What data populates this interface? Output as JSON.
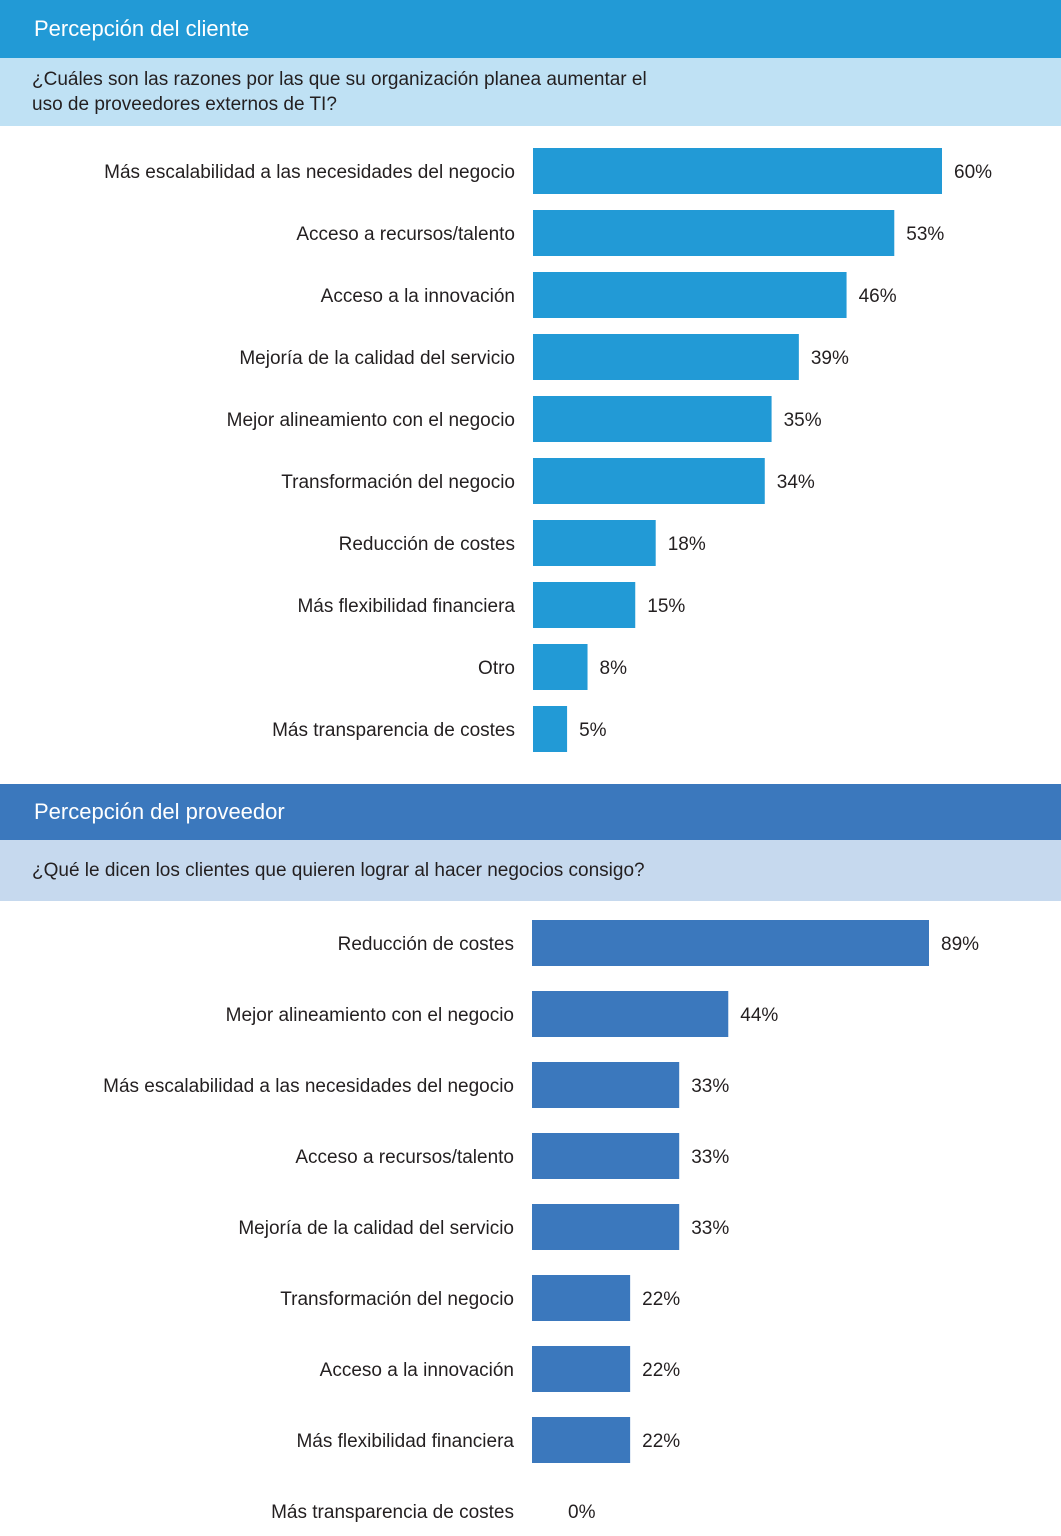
{
  "colors": {
    "client_header": "#229ad6",
    "client_question_bg": "#bfe1f4",
    "client_bar": "#229ad6",
    "provider_header": "#3b78bd",
    "provider_question_bg": "#c6d9ee",
    "provider_bar": "#3b78bd"
  },
  "client": {
    "title": "Percepción del cliente",
    "question": "¿Cuáles son las razones por las que su organización planea aumentar el uso de proveedores externos de TI?"
  },
  "provider": {
    "title": "Percepción del proveedor",
    "question": "¿Qué le dicen los clientes que quieren lograr al hacer negocios consigo?"
  },
  "chart_data": [
    {
      "type": "bar",
      "orientation": "horizontal",
      "categories": [
        "Más escalabilidad a las necesidades del negocio",
        "Acceso a recursos/talento",
        "Acceso a la innovación",
        "Mejoría de la calidad del servicio",
        "Mejor alineamiento con el negocio",
        "Transformación del negocio",
        "Reducción de costes",
        "Más flexibilidad financiera",
        "Otro",
        "Más transparencia de costes"
      ],
      "values": [
        60,
        53,
        46,
        39,
        35,
        34,
        18,
        15,
        8,
        5
      ],
      "value_labels": [
        "60%",
        "53%",
        "46%",
        "39%",
        "35%",
        "34%",
        "18%",
        "15%",
        "8%",
        "5%"
      ],
      "unit": "%",
      "xlim": [
        0,
        60
      ],
      "grid": false
    },
    {
      "type": "bar",
      "orientation": "horizontal",
      "categories": [
        "Reducción de costes",
        "Mejor alineamiento con el negocio",
        "Más escalabilidad a las necesidades del negocio",
        "Acceso a recursos/talento",
        "Mejoría de la calidad del servicio",
        "Transformación del negocio",
        "Acceso a la innovación",
        "Más flexibilidad financiera",
        "Más transparencia de costes"
      ],
      "values": [
        89,
        44,
        33,
        33,
        33,
        22,
        22,
        22,
        0
      ],
      "value_labels": [
        "89%",
        "44%",
        "33%",
        "33%",
        "33%",
        "22%",
        "22%",
        "22%",
        "0%"
      ],
      "unit": "%",
      "xlim": [
        0,
        89
      ],
      "grid": false
    }
  ]
}
